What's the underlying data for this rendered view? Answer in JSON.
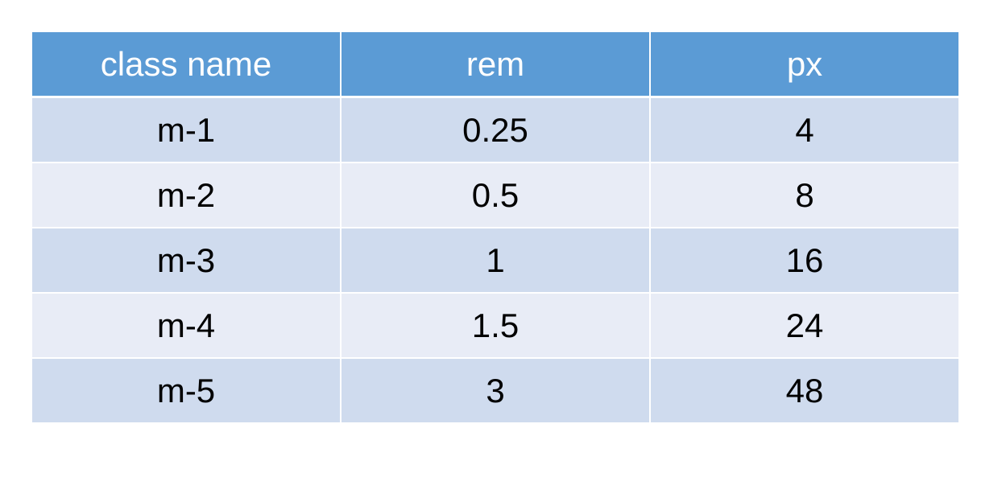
{
  "table": {
    "headers": [
      "class name",
      "rem",
      "px"
    ],
    "rows": [
      [
        "m-1",
        "0.25",
        "4"
      ],
      [
        "m-2",
        "0.5",
        "8"
      ],
      [
        "m-3",
        "1",
        "16"
      ],
      [
        "m-4",
        "1.5",
        "24"
      ],
      [
        "m-5",
        "3",
        "48"
      ]
    ]
  },
  "colors": {
    "header_bg": "#5b9bd5",
    "row_odd_bg": "#cfdbee",
    "row_even_bg": "#e8ecf6"
  }
}
